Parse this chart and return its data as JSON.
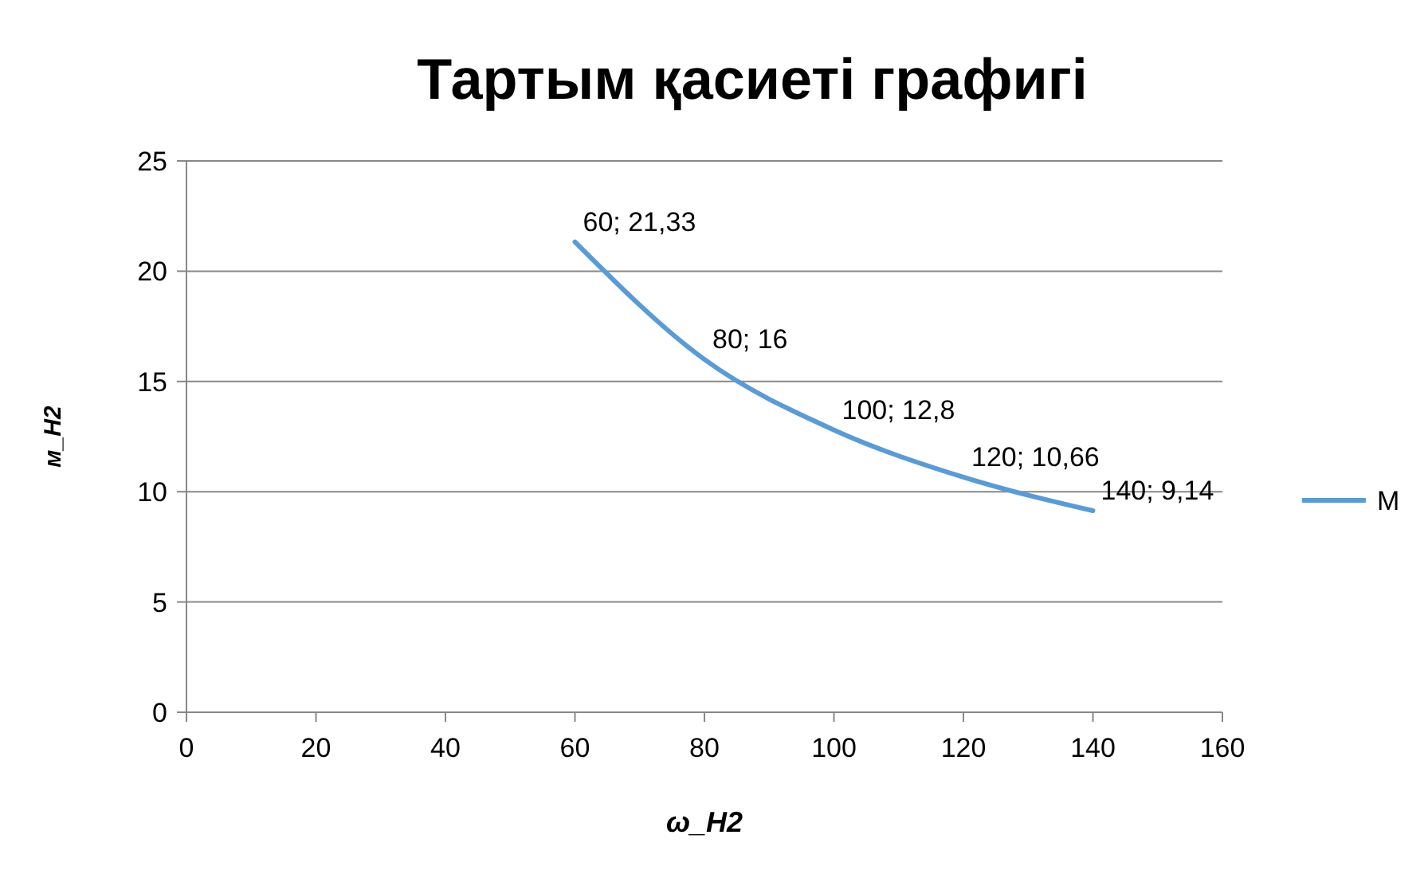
{
  "chart_data": {
    "type": "line",
    "title": "Тартым қасиеті графигі",
    "xlabel": "ω_H2",
    "ylabel": "м_H2",
    "x": [
      60,
      80,
      100,
      120,
      140
    ],
    "series": [
      {
        "name": "M",
        "color": "#5b9bd5",
        "values": [
          21.33,
          16,
          12.8,
          10.66,
          9.14
        ],
        "value_labels": [
          "60; 21,33",
          "80; 16",
          "100; 12,8",
          "120; 10,66",
          "140; 9,14"
        ]
      }
    ],
    "xlim": [
      0,
      160
    ],
    "xticks": [
      0,
      20,
      40,
      60,
      80,
      100,
      120,
      140,
      160
    ],
    "ylim": [
      0,
      25
    ],
    "yticks": [
      0,
      5,
      10,
      15,
      20,
      25
    ],
    "grid": "y",
    "legend": "right",
    "marker": "none",
    "line_style": "solid"
  }
}
